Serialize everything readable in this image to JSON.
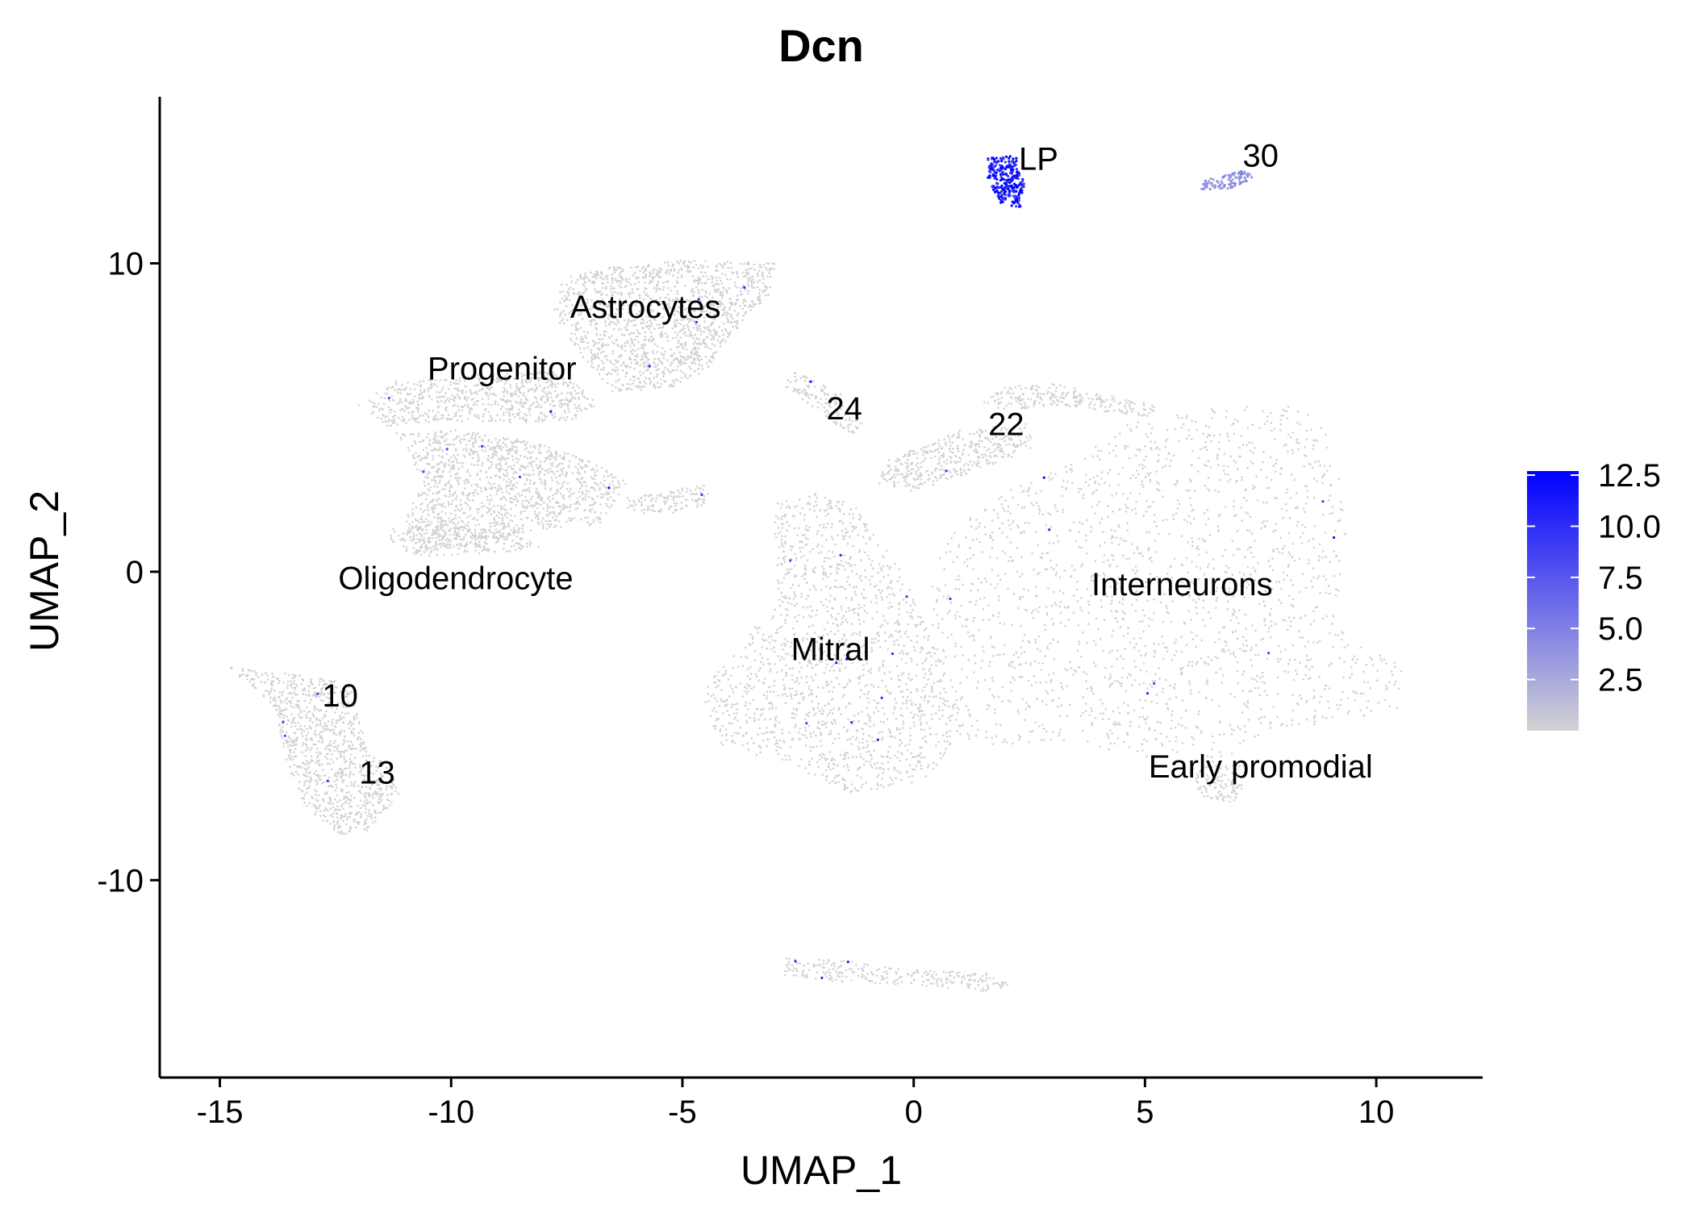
{
  "chart_data": {
    "type": "scatter",
    "title": "Dcn",
    "xlabel": "UMAP_1",
    "ylabel": "UMAP_2",
    "xlim": [
      -16.3,
      12.3
    ],
    "ylim": [
      -16.4,
      15.4
    ],
    "x_ticks": [
      -15,
      -10,
      -5,
      0,
      5,
      10
    ],
    "x_tick_labels": [
      "-15",
      "-10",
      "-5",
      "0",
      "5",
      "10"
    ],
    "y_ticks": [
      10,
      0,
      -10
    ],
    "y_tick_labels": [
      "10",
      "0",
      "-10"
    ],
    "grid": false,
    "point_color_low": "#d3d3d3",
    "point_color_high": "#0000ff",
    "color_scale": {
      "min": 0,
      "max": 12.7,
      "ticks": [
        2.5,
        5.0,
        7.5,
        10.0,
        12.5
      ],
      "tick_labels": [
        "2.5",
        "5.0",
        "7.5",
        "10.0",
        "12.5"
      ],
      "placement": "right"
    },
    "cluster_labels": [
      {
        "text": "LP",
        "x": 2.7,
        "y": 13.4
      },
      {
        "text": "30",
        "x": 7.5,
        "y": 13.5
      },
      {
        "text": "Astrocytes",
        "x": -5.8,
        "y": 8.6
      },
      {
        "text": "Progenitor",
        "x": -8.9,
        "y": 6.6
      },
      {
        "text": "24",
        "x": -1.5,
        "y": 5.3
      },
      {
        "text": "22",
        "x": 2.0,
        "y": 4.8
      },
      {
        "text": "Oligodendrocyte",
        "x": -9.9,
        "y": -0.2
      },
      {
        "text": "Interneurons",
        "x": 5.8,
        "y": -0.4
      },
      {
        "text": "Mitral",
        "x": -1.8,
        "y": -2.5
      },
      {
        "text": "10",
        "x": -12.4,
        "y": -4.0
      },
      {
        "text": "13",
        "x": -11.6,
        "y": -6.5
      },
      {
        "text": "Early promodial",
        "x": 7.5,
        "y": -6.3
      }
    ],
    "clusters": [
      {
        "id": "astro",
        "expr": 0.15,
        "shape": [
          [
            -7.6,
            9.5
          ],
          [
            -6.5,
            9.9
          ],
          [
            -5,
            10.1
          ],
          [
            -3,
            10.0
          ],
          [
            -3.1,
            9.0
          ],
          [
            -4,
            7.6
          ],
          [
            -4.5,
            6.5
          ],
          [
            -5.2,
            6.0
          ],
          [
            -6.5,
            5.8
          ],
          [
            -7.2,
            7.0
          ],
          [
            -7.8,
            8.4
          ]
        ]
      },
      {
        "id": "progenitor",
        "expr": 0.05,
        "shape": [
          [
            -12,
            5.4
          ],
          [
            -11.2,
            6.2
          ],
          [
            -10.1,
            6.3
          ],
          [
            -9.0,
            6.5
          ],
          [
            -7.6,
            6.5
          ],
          [
            -6.8,
            5.4
          ],
          [
            -7.4,
            4.9
          ],
          [
            -8.8,
            4.8
          ],
          [
            -10.2,
            4.9
          ],
          [
            -11.4,
            4.7
          ]
        ]
      },
      {
        "id": "olig-stream",
        "expr": 0.05,
        "shape": [
          [
            -11.2,
            4.5
          ],
          [
            -9.8,
            4.6
          ],
          [
            -8.2,
            4.2
          ],
          [
            -7.0,
            3.6
          ],
          [
            -6.2,
            2.9
          ],
          [
            -6.8,
            1.5
          ],
          [
            -8.4,
            1.3
          ],
          [
            -9.5,
            0.8
          ],
          [
            -10.8,
            0.6
          ],
          [
            -11.0,
            1.8
          ],
          [
            -10.6,
            3.0
          ]
        ]
      },
      {
        "id": "olig",
        "expr": 0.05,
        "shape": [
          [
            -11.3,
            1.4
          ],
          [
            -9.8,
            1.6
          ],
          [
            -8.6,
            1.2
          ],
          [
            -8.0,
            0.8
          ],
          [
            -9.1,
            0.6
          ],
          [
            -10.6,
            0.5
          ],
          [
            -11.3,
            0.8
          ]
        ]
      },
      {
        "id": "small-blob",
        "expr": 0.05,
        "shape": [
          [
            -6.2,
            2.4
          ],
          [
            -5.3,
            2.6
          ],
          [
            -4.5,
            2.9
          ],
          [
            -4.4,
            2.2
          ],
          [
            -5.2,
            1.9
          ],
          [
            -6.2,
            1.9
          ]
        ]
      },
      {
        "id": "c24",
        "expr": 0.05,
        "shape": [
          [
            -2.6,
            6.5
          ],
          [
            -1.6,
            5.8
          ],
          [
            -1.0,
            4.8
          ],
          [
            -1.3,
            4.4
          ],
          [
            -2.0,
            5.1
          ],
          [
            -2.8,
            6.0
          ]
        ]
      },
      {
        "id": "c22",
        "expr": 0.05,
        "shape": [
          [
            2.0,
            6.0
          ],
          [
            3.0,
            6.1
          ],
          [
            4.0,
            5.8
          ],
          [
            5.2,
            5.4
          ],
          [
            5.3,
            5.0
          ],
          [
            4.0,
            5.2
          ],
          [
            3.0,
            5.4
          ],
          [
            2.0,
            5.2
          ],
          [
            1.5,
            5.5
          ]
        ]
      },
      {
        "id": "bridge",
        "expr": 0.05,
        "shape": [
          [
            -0.6,
            3.6
          ],
          [
            1.0,
            4.6
          ],
          [
            2.5,
            4.8
          ],
          [
            2.6,
            4.0
          ],
          [
            1.2,
            3.2
          ],
          [
            0.0,
            2.6
          ],
          [
            -0.8,
            2.8
          ]
        ]
      },
      {
        "id": "mitral",
        "expr": 0.1,
        "shape": [
          [
            -3.0,
            2.2
          ],
          [
            -2.0,
            2.6
          ],
          [
            -1.2,
            2.1
          ],
          [
            -0.3,
            0.2
          ],
          [
            0.6,
            -2.8
          ],
          [
            1.2,
            -5.0
          ],
          [
            0.2,
            -6.8
          ],
          [
            -1.4,
            -7.2
          ],
          [
            -2.6,
            -6.3
          ],
          [
            -4.2,
            -5.6
          ],
          [
            -4.6,
            -3.8
          ],
          [
            -3.6,
            -2.2
          ],
          [
            -3.0,
            -0.8
          ]
        ]
      },
      {
        "id": "interneurons",
        "expr": 0.12,
        "shape": [
          [
            1.0,
            1.5
          ],
          [
            2.0,
            2.6
          ],
          [
            3.5,
            3.6
          ],
          [
            4.5,
            4.8
          ],
          [
            6.5,
            5.3
          ],
          [
            8.0,
            5.6
          ],
          [
            8.8,
            5.0
          ],
          [
            9.4,
            2.0
          ],
          [
            9.1,
            -1.6
          ],
          [
            10.0,
            -2.6
          ],
          [
            10.7,
            -3.0
          ],
          [
            10.6,
            -4.4
          ],
          [
            9.4,
            -4.8
          ],
          [
            7.6,
            -5.2
          ],
          [
            6.6,
            -6.2
          ],
          [
            5.0,
            -6.0
          ],
          [
            3.2,
            -5.6
          ],
          [
            1.2,
            -5.6
          ],
          [
            0.4,
            -2.5
          ],
          [
            0.4,
            0.4
          ]
        ]
      },
      {
        "id": "early-promodial",
        "expr": 0.05,
        "shape": [
          [
            6.0,
            -6.3
          ],
          [
            7.2,
            -6.3
          ],
          [
            7.0,
            -7.6
          ],
          [
            6.2,
            -7.3
          ]
        ]
      },
      {
        "id": "c10-13",
        "expr": 0.1,
        "shape": [
          [
            -14.8,
            -3.1
          ],
          [
            -13.5,
            -3.3
          ],
          [
            -12.2,
            -3.6
          ],
          [
            -11.8,
            -5.8
          ],
          [
            -11.3,
            -6.4
          ],
          [
            -11.1,
            -7.2
          ],
          [
            -11.8,
            -8.4
          ],
          [
            -12.4,
            -8.6
          ],
          [
            -13.2,
            -7.6
          ],
          [
            -13.6,
            -6.0
          ],
          [
            -13.8,
            -4.4
          ]
        ]
      },
      {
        "id": "bottom",
        "expr": 0.02,
        "shape": [
          [
            -2.8,
            -12.5
          ],
          [
            -1.6,
            -12.6
          ],
          [
            0,
            -12.9
          ],
          [
            1.6,
            -13.0
          ],
          [
            2.1,
            -13.4
          ],
          [
            1.6,
            -13.6
          ],
          [
            0,
            -13.4
          ],
          [
            -1.6,
            -13.3
          ],
          [
            -2.8,
            -13.1
          ]
        ]
      },
      {
        "id": "LP",
        "expr": 11.5,
        "shape": [
          [
            1.6,
            13.4
          ],
          [
            2.2,
            13.5
          ],
          [
            2.4,
            12.6
          ],
          [
            2.3,
            11.8
          ],
          [
            1.9,
            11.9
          ],
          [
            1.6,
            12.6
          ]
        ]
      },
      {
        "id": "c30",
        "expr": 4.0,
        "shape": [
          [
            6.3,
            12.7
          ],
          [
            7.1,
            13.0
          ],
          [
            7.4,
            12.8
          ],
          [
            6.8,
            12.4
          ],
          [
            6.2,
            12.4
          ]
        ]
      }
    ]
  }
}
